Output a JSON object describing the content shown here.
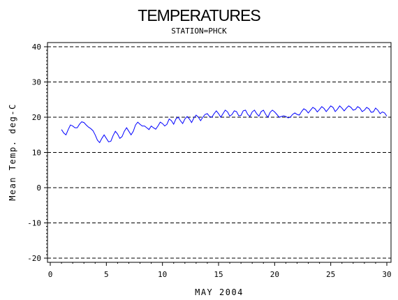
{
  "chart_data": {
    "type": "line",
    "title": "TEMPERATURES",
    "subtitle": "STATION=PHCK",
    "xlabel": "MAY 2004",
    "ylabel": "Mean Temp. deg-C",
    "xlim": [
      0,
      30
    ],
    "ylim": [
      -20,
      40
    ],
    "x_ticks": [
      "0",
      "5",
      "10",
      "15",
      "20",
      "25",
      "30"
    ],
    "y_ticks": [
      "-20",
      "-10",
      "0",
      "10",
      "20",
      "30",
      "40"
    ],
    "grid": "horizontal-dashed",
    "line_color": "#0000ff",
    "series": [
      {
        "points": [
          [
            1.0,
            16.5
          ],
          [
            1.2,
            15.5
          ],
          [
            1.4,
            15.0
          ],
          [
            1.6,
            16.5
          ],
          [
            1.8,
            17.8
          ],
          [
            2.0,
            17.5
          ],
          [
            2.2,
            17.0
          ],
          [
            2.4,
            17.0
          ],
          [
            2.6,
            18.0
          ],
          [
            2.8,
            18.7
          ],
          [
            3.0,
            18.5
          ],
          [
            3.2,
            17.8
          ],
          [
            3.4,
            17.2
          ],
          [
            3.6,
            16.8
          ],
          [
            3.8,
            16.2
          ],
          [
            4.0,
            15.0
          ],
          [
            4.2,
            13.5
          ],
          [
            4.4,
            12.8
          ],
          [
            4.6,
            14.0
          ],
          [
            4.8,
            15.0
          ],
          [
            5.0,
            14.0
          ],
          [
            5.2,
            13.0
          ],
          [
            5.4,
            13.2
          ],
          [
            5.6,
            14.8
          ],
          [
            5.8,
            16.0
          ],
          [
            6.0,
            15.2
          ],
          [
            6.2,
            14.0
          ],
          [
            6.4,
            14.5
          ],
          [
            6.6,
            16.0
          ],
          [
            6.8,
            17.0
          ],
          [
            7.0,
            16.0
          ],
          [
            7.2,
            15.0
          ],
          [
            7.4,
            16.0
          ],
          [
            7.6,
            17.8
          ],
          [
            7.8,
            18.6
          ],
          [
            8.0,
            18.0
          ],
          [
            8.2,
            17.5
          ],
          [
            8.4,
            17.5
          ],
          [
            8.6,
            17.0
          ],
          [
            8.8,
            16.5
          ],
          [
            9.0,
            17.5
          ],
          [
            9.2,
            17.0
          ],
          [
            9.4,
            16.6
          ],
          [
            9.6,
            17.5
          ],
          [
            9.8,
            18.6
          ],
          [
            10.0,
            18.2
          ],
          [
            10.2,
            17.5
          ],
          [
            10.4,
            18.0
          ],
          [
            10.6,
            19.5
          ],
          [
            10.8,
            19.0
          ],
          [
            11.0,
            18.0
          ],
          [
            11.2,
            19.5
          ],
          [
            11.4,
            20.0
          ],
          [
            11.6,
            19.0
          ],
          [
            11.8,
            18.2
          ],
          [
            12.0,
            19.5
          ],
          [
            12.2,
            20.2
          ],
          [
            12.4,
            19.5
          ],
          [
            12.6,
            18.5
          ],
          [
            12.8,
            19.8
          ],
          [
            13.0,
            20.6
          ],
          [
            13.2,
            20.0
          ],
          [
            13.4,
            19.0
          ],
          [
            13.6,
            20.0
          ],
          [
            13.8,
            20.8
          ],
          [
            14.0,
            21.0
          ],
          [
            14.2,
            20.2
          ],
          [
            14.4,
            20.0
          ],
          [
            14.6,
            21.0
          ],
          [
            14.8,
            21.8
          ],
          [
            15.0,
            21.0
          ],
          [
            15.2,
            20.0
          ],
          [
            15.4,
            21.0
          ],
          [
            15.6,
            22.0
          ],
          [
            15.8,
            21.5
          ],
          [
            16.0,
            20.3
          ],
          [
            16.2,
            20.8
          ],
          [
            16.4,
            21.8
          ],
          [
            16.6,
            21.6
          ],
          [
            16.8,
            20.4
          ],
          [
            17.0,
            20.5
          ],
          [
            17.2,
            21.8
          ],
          [
            17.4,
            22.0
          ],
          [
            17.6,
            20.8
          ],
          [
            17.8,
            20.2
          ],
          [
            18.0,
            21.5
          ],
          [
            18.2,
            22.0
          ],
          [
            18.4,
            21.0
          ],
          [
            18.6,
            20.3
          ],
          [
            18.8,
            21.6
          ],
          [
            19.0,
            22.0
          ],
          [
            19.2,
            20.8
          ],
          [
            19.4,
            20.0
          ],
          [
            19.6,
            21.4
          ],
          [
            19.8,
            22.0
          ],
          [
            20.0,
            21.5
          ],
          [
            20.2,
            20.8
          ],
          [
            20.4,
            20.0
          ],
          [
            20.6,
            20.2
          ],
          [
            20.8,
            20.4
          ],
          [
            21.0,
            20.2
          ],
          [
            21.2,
            19.8
          ],
          [
            21.4,
            20.0
          ],
          [
            21.6,
            20.8
          ],
          [
            21.8,
            21.2
          ],
          [
            22.0,
            20.8
          ],
          [
            22.2,
            20.6
          ],
          [
            22.4,
            21.6
          ],
          [
            22.6,
            22.4
          ],
          [
            22.8,
            22.0
          ],
          [
            23.0,
            21.2
          ],
          [
            23.2,
            22.0
          ],
          [
            23.4,
            22.8
          ],
          [
            23.6,
            22.4
          ],
          [
            23.8,
            21.5
          ],
          [
            24.0,
            22.2
          ],
          [
            24.2,
            23.0
          ],
          [
            24.4,
            22.5
          ],
          [
            24.6,
            21.6
          ],
          [
            24.8,
            22.4
          ],
          [
            25.0,
            23.2
          ],
          [
            25.2,
            22.8
          ],
          [
            25.4,
            21.6
          ],
          [
            25.6,
            22.3
          ],
          [
            25.8,
            23.2
          ],
          [
            26.0,
            22.6
          ],
          [
            26.2,
            21.8
          ],
          [
            26.4,
            22.6
          ],
          [
            26.6,
            23.2
          ],
          [
            26.8,
            22.8
          ],
          [
            27.0,
            22.0
          ],
          [
            27.2,
            22.2
          ],
          [
            27.4,
            23.0
          ],
          [
            27.6,
            22.6
          ],
          [
            27.8,
            21.6
          ],
          [
            28.0,
            22.0
          ],
          [
            28.2,
            22.8
          ],
          [
            28.4,
            22.4
          ],
          [
            28.6,
            21.4
          ],
          [
            28.8,
            21.5
          ],
          [
            29.0,
            22.6
          ],
          [
            29.2,
            22.0
          ],
          [
            29.4,
            21.0
          ],
          [
            29.6,
            21.5
          ],
          [
            29.8,
            21.2
          ],
          [
            30.0,
            20.3
          ]
        ]
      }
    ]
  }
}
